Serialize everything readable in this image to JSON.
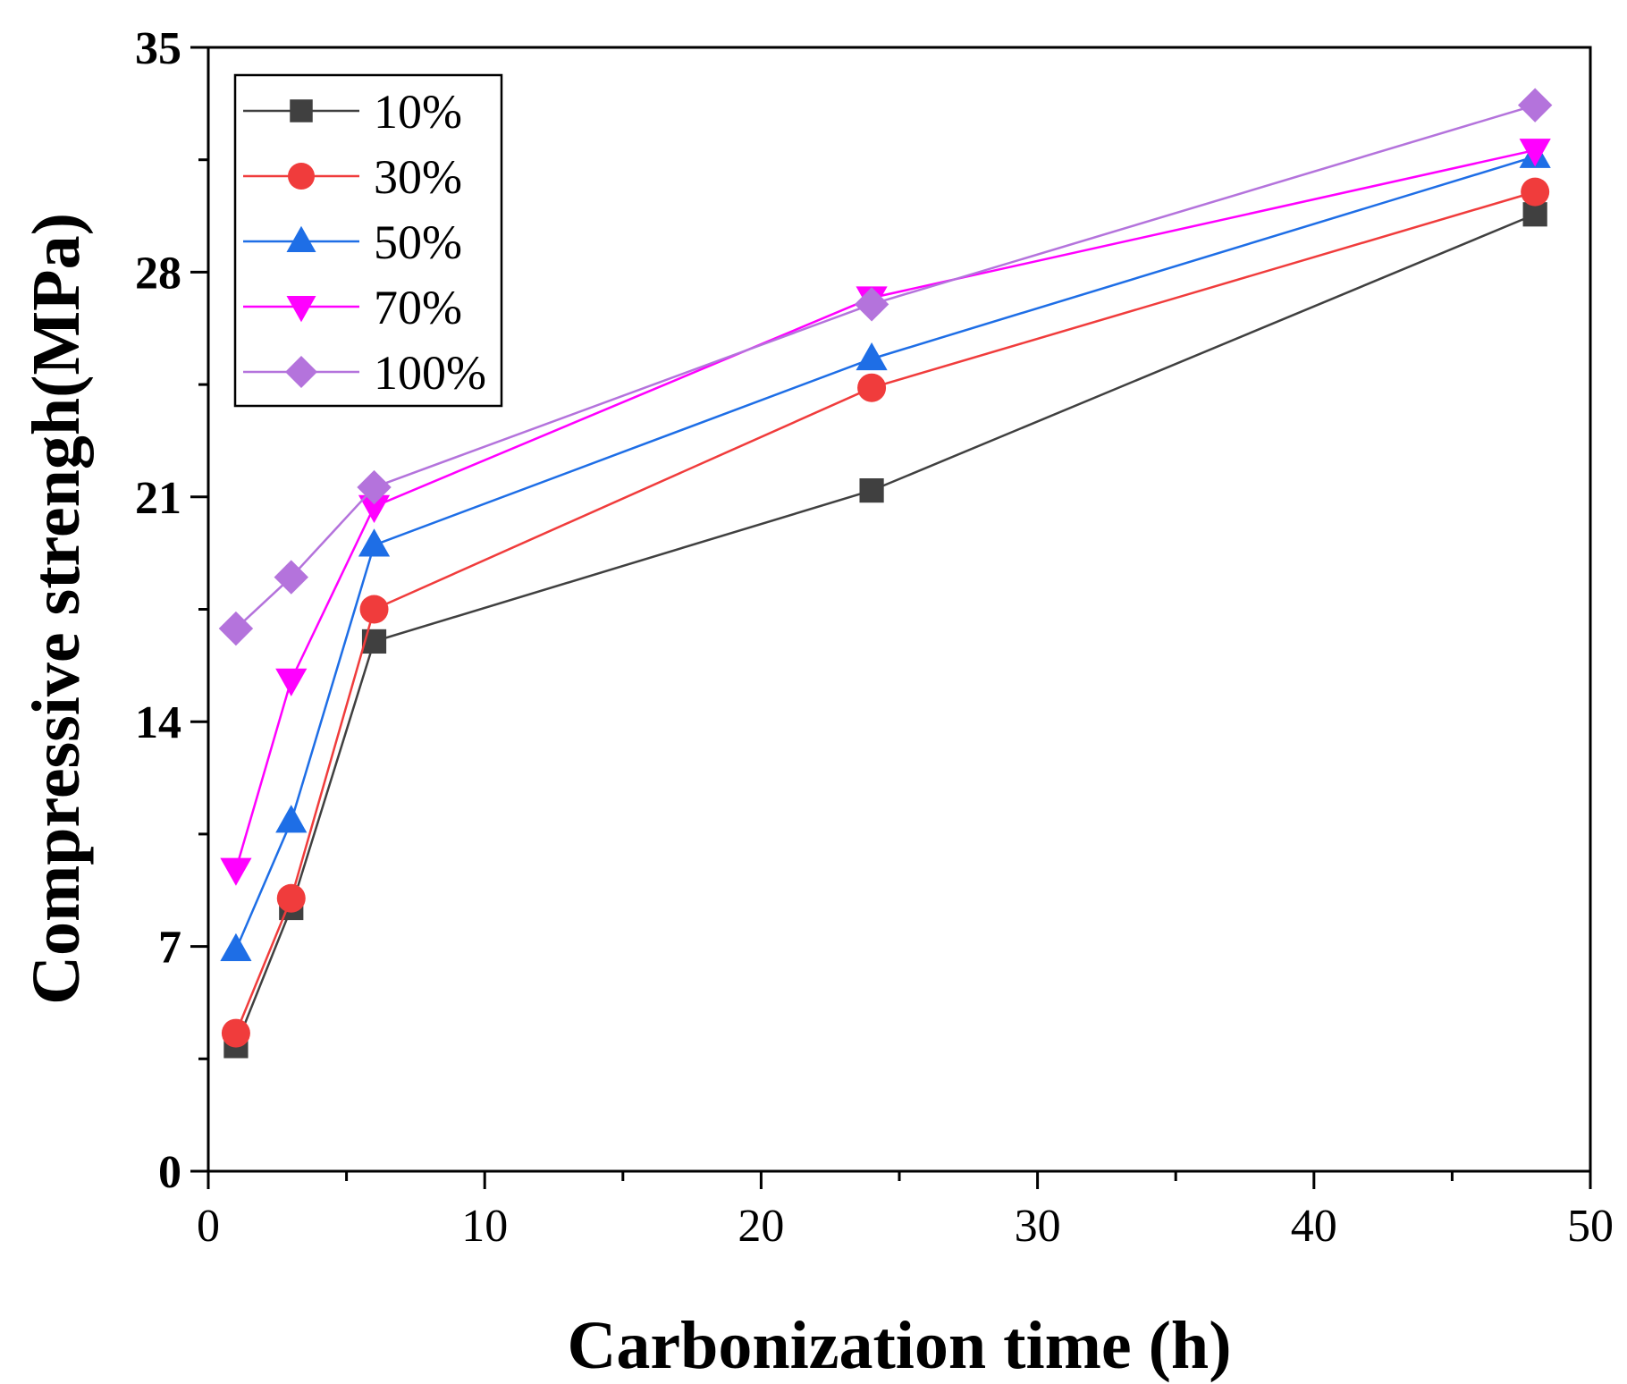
{
  "chart_data": {
    "type": "line",
    "xlabel": "Carbonization time (h)",
    "ylabel": "Compressive strengh(MPa)",
    "xlim": [
      0,
      50
    ],
    "ylim": [
      0,
      35
    ],
    "xticks": [
      "0",
      "10",
      "20",
      "30",
      "40",
      "50"
    ],
    "yticks": [
      "0",
      "7",
      "14",
      "21",
      "28",
      "35"
    ],
    "grid": false,
    "legend_position": "top-left",
    "series": [
      {
        "name": "10%",
        "color": "#404040",
        "marker": "square",
        "x": [
          1,
          3,
          6,
          24,
          48
        ],
        "y": [
          3.9,
          8.2,
          16.5,
          21.2,
          29.8
        ]
      },
      {
        "name": "30%",
        "color": "#f03c3c",
        "marker": "circle",
        "x": [
          1,
          3,
          6,
          24,
          48
        ],
        "y": [
          4.3,
          8.5,
          17.5,
          24.4,
          30.5
        ]
      },
      {
        "name": "50%",
        "color": "#1e6ee6",
        "marker": "triangle-up",
        "x": [
          1,
          3,
          6,
          24,
          48
        ],
        "y": [
          6.9,
          10.9,
          19.5,
          25.3,
          31.6
        ]
      },
      {
        "name": "70%",
        "color": "#ff00ff",
        "marker": "triangle-down",
        "x": [
          1,
          3,
          6,
          24,
          48
        ],
        "y": [
          9.4,
          15.3,
          20.7,
          27.2,
          31.8
        ]
      },
      {
        "name": "100%",
        "color": "#b473dc",
        "marker": "diamond",
        "x": [
          1,
          3,
          6,
          24,
          48
        ],
        "y": [
          16.9,
          18.5,
          21.3,
          27.0,
          33.2
        ]
      }
    ]
  }
}
